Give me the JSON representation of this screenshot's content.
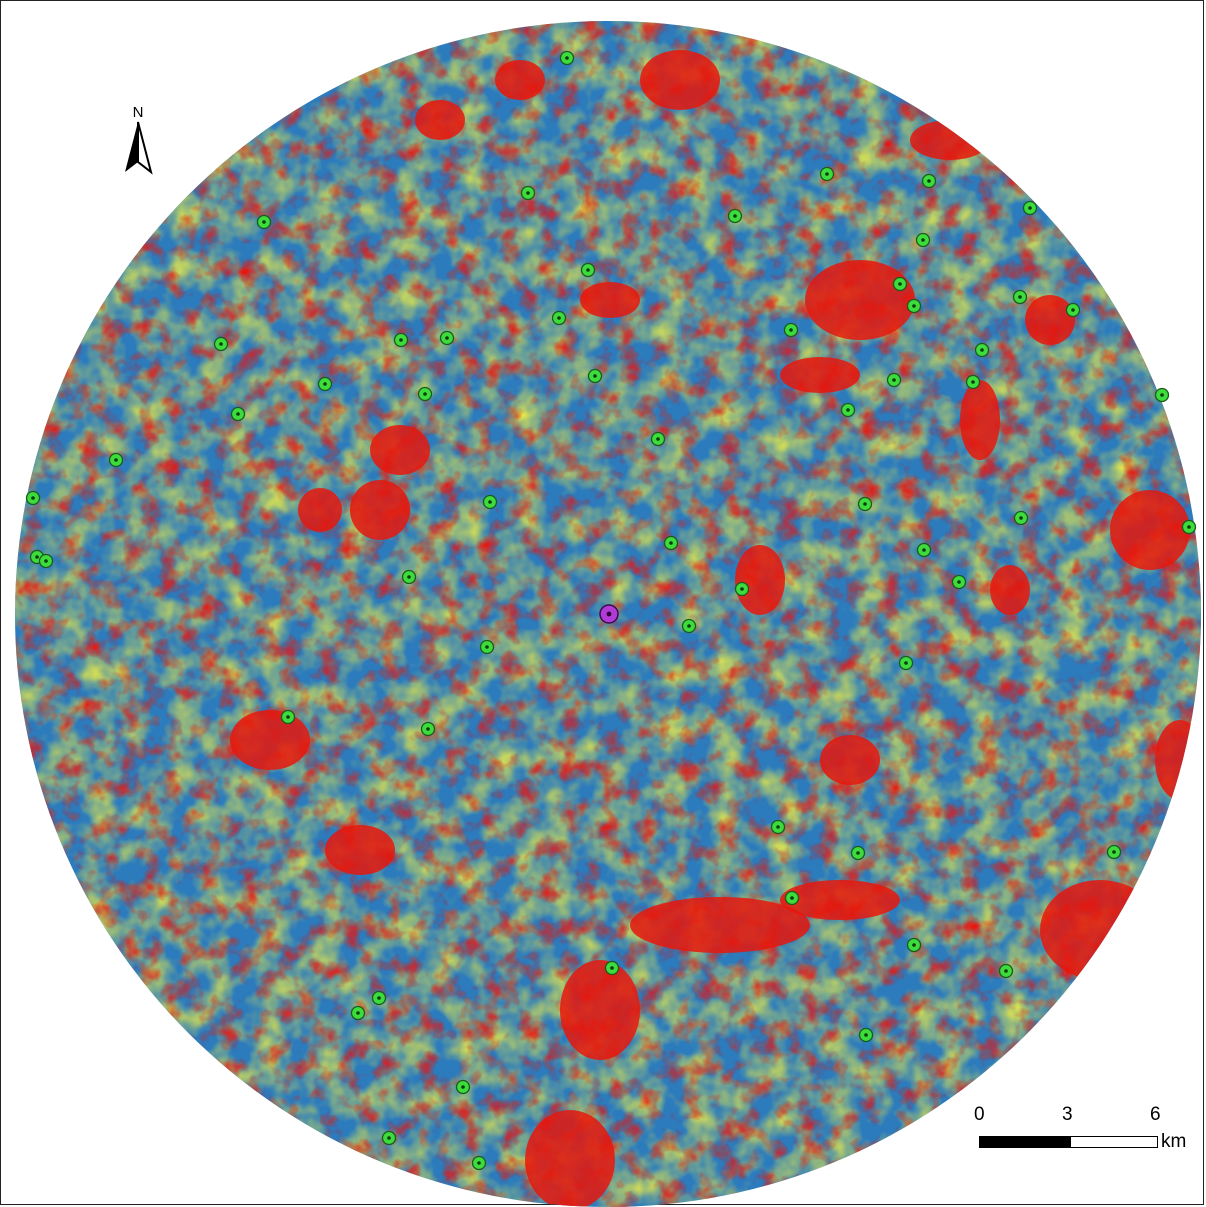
{
  "map": {
    "colors": {
      "low": "#2b7bbd",
      "mid": "#e6e84a",
      "high": "#e8160c",
      "site_marker": "#3cdc3c",
      "center_marker": "#b23ad6"
    },
    "center_marker_icon": "center-site-marker",
    "site_marker_icon": "site-marker"
  },
  "north_arrow": {
    "label": "N",
    "icon": "north-arrow-icon"
  },
  "scale_bar": {
    "ticks": [
      "0",
      "3",
      "6"
    ],
    "unit": "km"
  }
}
